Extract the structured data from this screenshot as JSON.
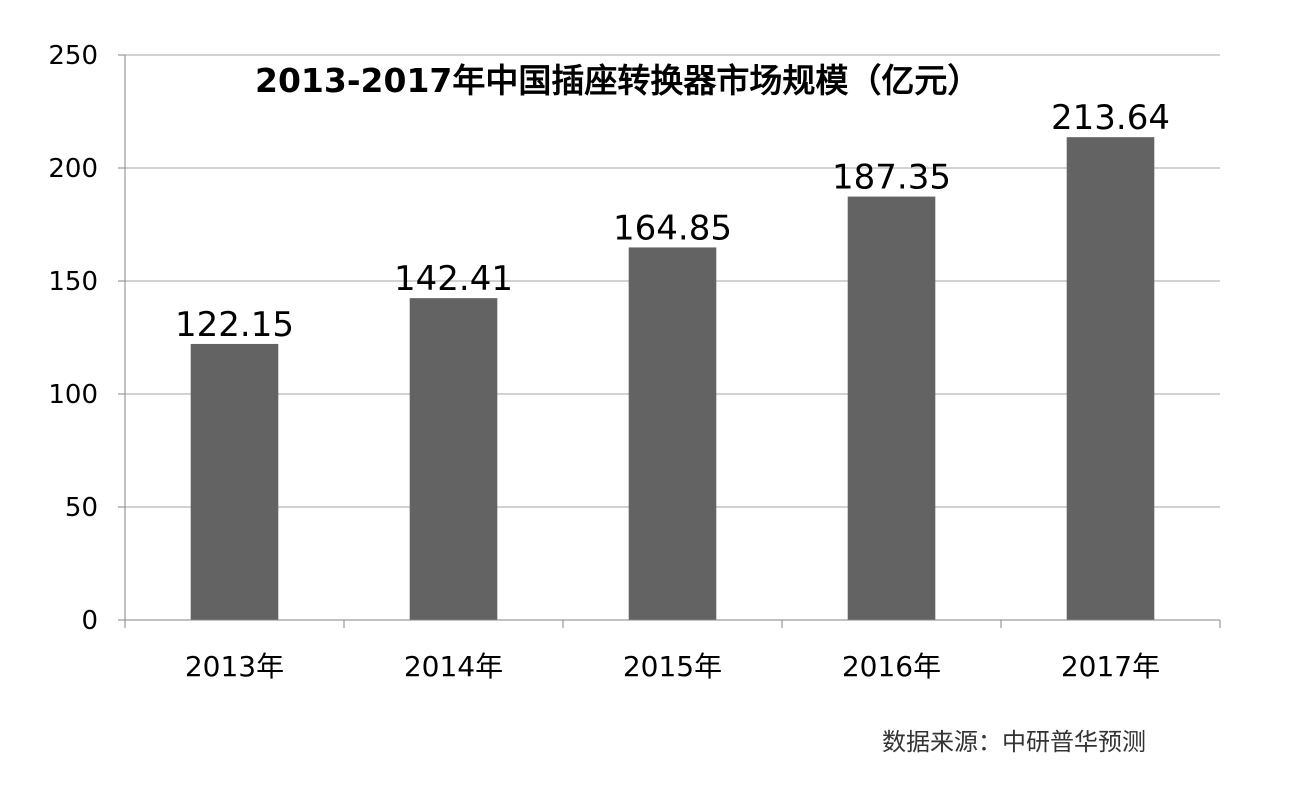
{
  "chart_data": {
    "type": "bar",
    "title": "2013-2017年中国插座转换器市场规模（亿元）",
    "categories": [
      "2013年",
      "2014年",
      "2015年",
      "2016年",
      "2017年"
    ],
    "values": [
      122.15,
      142.41,
      164.85,
      187.35,
      213.64
    ],
    "value_labels": [
      "122.15",
      "142.41",
      "164.85",
      "187.35",
      "213.64"
    ],
    "ylim": [
      0,
      250
    ],
    "yticks": [
      "0",
      "50",
      "100",
      "150",
      "200",
      "250"
    ],
    "ytick_values": [
      0,
      50,
      100,
      150,
      200,
      250
    ],
    "grid": true,
    "bar_color": "#636363",
    "grid_color": "#a6a6a6",
    "source": "数据来源：中研普华预测"
  }
}
